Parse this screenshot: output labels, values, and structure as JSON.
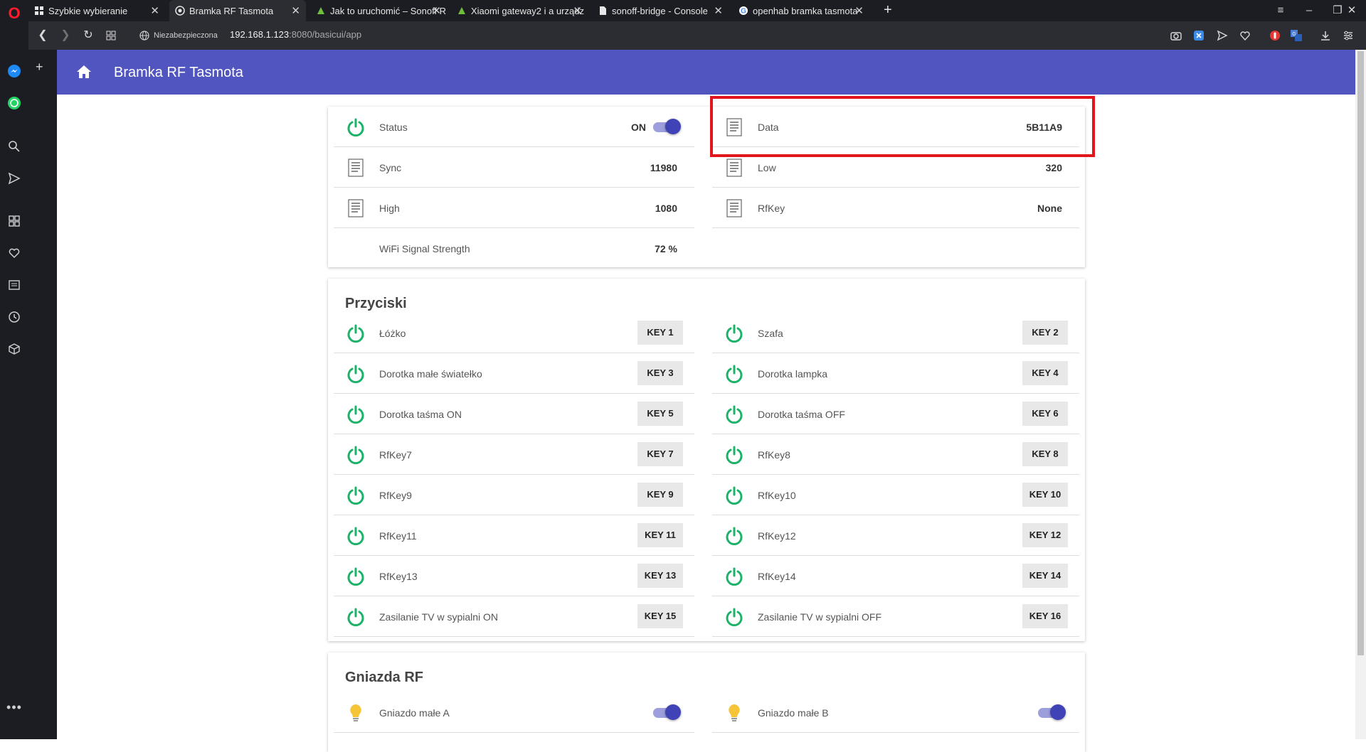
{
  "browser": {
    "tabs": [
      {
        "title": "Szybkie wybieranie",
        "icon": "grid-icon"
      },
      {
        "title": "Bramka RF Tasmota",
        "icon": "openhab-icon",
        "active": true
      },
      {
        "title": "Jak to uruchomić – Sonoff R",
        "icon": "forum-icon"
      },
      {
        "title": "Xiaomi gateway2 i a urządz",
        "icon": "forum-icon"
      },
      {
        "title": "sonoff-bridge - Console",
        "icon": "page-icon"
      },
      {
        "title": "openhab bramka tasmota",
        "icon": "google-icon"
      }
    ],
    "security_label": "Niezabezpieczona",
    "url_host": "192.168.1.123",
    "url_rest": ":8080/basicui/app"
  },
  "app": {
    "title": "Bramka RF Tasmota",
    "accent": "#5155c0",
    "status_items": {
      "left": [
        {
          "label": "Status",
          "value": "ON",
          "icon": "power-icon",
          "toggle": true
        },
        {
          "label": "Sync",
          "value": "11980",
          "icon": "document-icon"
        },
        {
          "label": "High",
          "value": "1080",
          "icon": "document-icon"
        },
        {
          "label": "WiFi Signal Strength",
          "value": "72 %",
          "icon": ""
        }
      ],
      "right": [
        {
          "label": "Data",
          "value": "5B11A9",
          "icon": "document-icon"
        },
        {
          "label": "Low",
          "value": "320",
          "icon": "document-icon"
        },
        {
          "label": "RfKey",
          "value": "None",
          "icon": "document-icon"
        }
      ]
    },
    "buttons_section": {
      "title": "Przyciski",
      "left": [
        {
          "label": "Łóżko",
          "key": "KEY 1"
        },
        {
          "label": "Dorotka małe światełko",
          "key": "KEY 3"
        },
        {
          "label": "Dorotka taśma ON",
          "key": "KEY 5"
        },
        {
          "label": "RfKey7",
          "key": "KEY 7"
        },
        {
          "label": "RfKey9",
          "key": "KEY 9"
        },
        {
          "label": "RfKey11",
          "key": "KEY 11"
        },
        {
          "label": "RfKey13",
          "key": "KEY 13"
        },
        {
          "label": "Zasilanie TV w sypialni ON",
          "key": "KEY 15"
        }
      ],
      "right": [
        {
          "label": "Szafa",
          "key": "KEY 2"
        },
        {
          "label": "Dorotka lampka",
          "key": "KEY 4"
        },
        {
          "label": "Dorotka taśma OFF",
          "key": "KEY 6"
        },
        {
          "label": "RfKey8",
          "key": "KEY 8"
        },
        {
          "label": "RfKey10",
          "key": "KEY 10"
        },
        {
          "label": "RfKey12",
          "key": "KEY 12"
        },
        {
          "label": "RfKey14",
          "key": "KEY 14"
        },
        {
          "label": "Zasilanie TV w sypialni OFF",
          "key": "KEY 16"
        }
      ]
    },
    "sockets_section": {
      "title": "Gniazda RF",
      "items": [
        {
          "label": "Gniazdo małe A",
          "icon": "lightbulb-icon",
          "on": true
        },
        {
          "label": "Gniazdo małe B",
          "icon": "lightbulb-icon",
          "on": true
        }
      ]
    }
  }
}
